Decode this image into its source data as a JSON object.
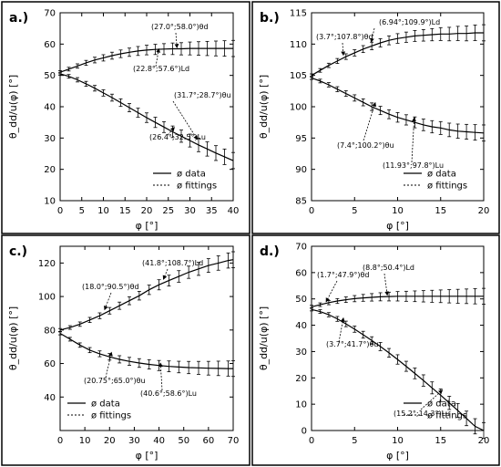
{
  "chart_data": [
    {
      "panel": "a.)",
      "type": "line",
      "xlabel": "φ [°]",
      "ylabel": "θ_dd/u(φ) [°]",
      "xlim": [
        0,
        40
      ],
      "ylim": [
        10,
        70
      ],
      "xticks": [
        0,
        5,
        10,
        15,
        20,
        25,
        30,
        35,
        40
      ],
      "yticks": [
        10,
        20,
        30,
        40,
        50,
        60,
        70
      ],
      "legend": {
        "position": "bottom-right",
        "entries": [
          "ø data",
          "ø fittings"
        ]
      },
      "series": [
        {
          "x": [
            0,
            2,
            4,
            6,
            8,
            10,
            12,
            14,
            16,
            18,
            20,
            22,
            24,
            26,
            28,
            30,
            32,
            34,
            36,
            38,
            40
          ],
          "y": [
            51.0,
            52.0,
            53.0,
            54.0,
            54.9,
            55.6,
            56.3,
            56.9,
            57.4,
            57.8,
            58.1,
            58.3,
            58.4,
            58.5,
            58.5,
            58.6,
            58.6,
            58.6,
            58.6,
            58.6,
            58.6
          ]
        },
        {
          "x": [
            0,
            2,
            4,
            6,
            8,
            10,
            12,
            14,
            16,
            18,
            20,
            22,
            24,
            26,
            28,
            30,
            32,
            34,
            36,
            38,
            40
          ],
          "y": [
            50.5,
            49.7,
            48.6,
            47.3,
            45.9,
            44.4,
            42.9,
            41.3,
            39.7,
            38.1,
            36.5,
            35.0,
            33.5,
            32.0,
            30.6,
            29.2,
            27.8,
            26.5,
            25.2,
            24.0,
            22.8
          ]
        }
      ],
      "annotations": [
        {
          "text": "(27.0°;58.0°)θd",
          "x": 27.0,
          "y": 58.0
        },
        {
          "text": "(22.8°;57.6°)Ld",
          "x": 22.8,
          "y": 57.6
        },
        {
          "text": "(31.7°;28.7°)θu",
          "x": 31.7,
          "y": 28.7
        },
        {
          "text": "(26.4°;32.5°)Lu",
          "x": 26.4,
          "y": 32.5
        }
      ]
    },
    {
      "panel": "b.)",
      "type": "line",
      "xlabel": "φ [°]",
      "ylabel": "θ_dd/u(φ) [°]",
      "xlim": [
        0,
        20
      ],
      "ylim": [
        85,
        115
      ],
      "xticks": [
        0,
        5,
        10,
        15,
        20
      ],
      "yticks": [
        85,
        90,
        95,
        100,
        105,
        110,
        115
      ],
      "legend": {
        "position": "bottom-right",
        "entries": [
          "ø data",
          "ø fittings"
        ]
      },
      "series": [
        {
          "x": [
            0,
            1,
            2,
            3,
            4,
            5,
            6,
            7,
            8,
            9,
            10,
            11,
            12,
            13,
            14,
            15,
            16,
            17,
            18,
            19,
            20
          ],
          "y": [
            105.0,
            105.8,
            106.6,
            107.3,
            108.0,
            108.6,
            109.2,
            109.7,
            110.2,
            110.6,
            110.9,
            111.1,
            111.3,
            111.4,
            111.5,
            111.6,
            111.6,
            111.7,
            111.7,
            111.8,
            111.8
          ]
        },
        {
          "x": [
            0,
            1,
            2,
            3,
            4,
            5,
            6,
            7,
            8,
            9,
            10,
            11,
            12,
            13,
            14,
            15,
            16,
            17,
            18,
            19,
            20
          ],
          "y": [
            104.6,
            104.1,
            103.5,
            102.8,
            102.1,
            101.4,
            100.7,
            100.0,
            99.4,
            98.8,
            98.3,
            97.9,
            97.5,
            97.1,
            96.8,
            96.6,
            96.3,
            96.1,
            96.0,
            95.9,
            95.8
          ]
        }
      ],
      "annotations": [
        {
          "text": "(6.94°;109.9°)Ld",
          "x": 6.94,
          "y": 109.9
        },
        {
          "text": "(3.7°;107.8°)θd",
          "x": 3.7,
          "y": 107.8
        },
        {
          "text": "(7.4°;100.2°)θu",
          "x": 7.4,
          "y": 100.2
        },
        {
          "text": "(11.93°;97.8°)Lu",
          "x": 11.93,
          "y": 97.8
        }
      ]
    },
    {
      "panel": "c.)",
      "type": "line",
      "xlabel": "φ [°]",
      "ylabel": "θ_dd/u(φ) [°]",
      "xlim": [
        0,
        70
      ],
      "ylim": [
        20,
        130
      ],
      "xticks": [
        0,
        10,
        20,
        30,
        40,
        50,
        60,
        70
      ],
      "yticks": [
        40,
        60,
        80,
        100,
        120
      ],
      "legend": {
        "position": "bottom-left",
        "entries": [
          "ø data",
          "ø fittings"
        ]
      },
      "series": [
        {
          "x": [
            0,
            4,
            8,
            12,
            16,
            20,
            24,
            28,
            32,
            36,
            40,
            44,
            48,
            52,
            56,
            60,
            64,
            68,
            70
          ],
          "y": [
            80.0,
            81.5,
            83.5,
            86.0,
            88.5,
            91.5,
            94.5,
            97.5,
            100.5,
            104.0,
            107.0,
            109.5,
            112.0,
            114.5,
            116.5,
            118.5,
            120.0,
            121.5,
            122.0
          ]
        },
        {
          "x": [
            0,
            4,
            8,
            12,
            16,
            20,
            24,
            28,
            32,
            36,
            40,
            44,
            48,
            52,
            56,
            60,
            64,
            68,
            70
          ],
          "y": [
            78.0,
            74.5,
            71.0,
            68.0,
            65.8,
            64.0,
            62.5,
            61.3,
            60.3,
            59.5,
            58.8,
            58.3,
            57.9,
            57.6,
            57.4,
            57.2,
            57.1,
            57.0,
            57.0
          ]
        }
      ],
      "annotations": [
        {
          "text": "(41.8°;108.7°)Ld",
          "x": 41.8,
          "y": 108.7
        },
        {
          "text": "(18.0°;90.5°)θd",
          "x": 18.0,
          "y": 90.5
        },
        {
          "text": "(20.75°;65.0°)θu",
          "x": 20.75,
          "y": 65.0
        },
        {
          "text": "(40.6°;58.6°)Lu",
          "x": 40.6,
          "y": 58.6
        }
      ]
    },
    {
      "panel": "d.)",
      "type": "line",
      "xlabel": "φ [°]",
      "ylabel": "θ_dd/u(φ) [°]",
      "xlim": [
        0,
        20
      ],
      "ylim": [
        0,
        70
      ],
      "xticks": [
        0,
        5,
        10,
        15,
        20
      ],
      "yticks": [
        0,
        10,
        20,
        30,
        40,
        50,
        60,
        70
      ],
      "legend": {
        "position": "bottom-right",
        "entries": [
          "ø data",
          "ø fittings"
        ]
      },
      "series": [
        {
          "x": [
            0,
            1,
            2,
            3,
            4,
            5,
            6,
            7,
            8,
            9,
            10,
            11,
            12,
            13,
            14,
            15,
            16,
            17,
            18,
            19,
            20
          ],
          "y": [
            47.0,
            47.8,
            48.6,
            49.2,
            49.7,
            50.1,
            50.4,
            50.6,
            50.8,
            50.9,
            51.0,
            51.0,
            51.0,
            51.0,
            51.0,
            51.0,
            51.0,
            51.0,
            51.0,
            51.0,
            51.0
          ]
        },
        {
          "x": [
            0,
            1,
            2,
            3,
            4,
            5,
            6,
            7,
            8,
            9,
            10,
            11,
            12,
            13,
            14,
            15,
            16,
            17,
            18,
            19,
            20
          ],
          "y": [
            46.0,
            45.2,
            44.0,
            42.4,
            40.5,
            38.5,
            36.4,
            34.2,
            31.9,
            29.5,
            27.0,
            24.4,
            21.7,
            19.0,
            16.2,
            13.4,
            10.5,
            7.6,
            4.6,
            1.6,
            0.0
          ]
        }
      ],
      "annotations": [
        {
          "text": "(8.8°;50.4°)Ld",
          "x": 8.8,
          "y": 50.4
        },
        {
          "text": "(1.7°;47.9°)θd",
          "x": 1.7,
          "y": 47.9
        },
        {
          "text": "(3.7°;41.7°)θu",
          "x": 3.7,
          "y": 41.7
        },
        {
          "text": "(15.2°;14.3°)Lu",
          "x": 15.2,
          "y": 14.3
        }
      ]
    }
  ]
}
